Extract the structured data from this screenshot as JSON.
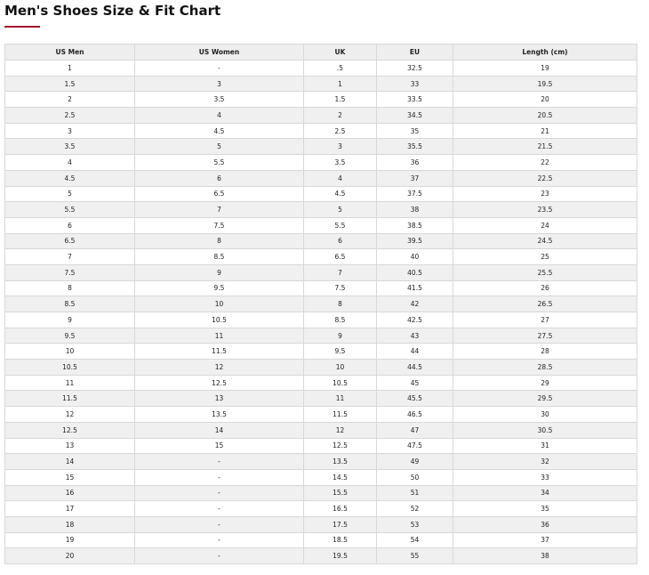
{
  "header": {
    "title": "Men's Shoes Size & Fit Chart"
  },
  "table": {
    "columns": [
      "US Men",
      "US Women",
      "UK",
      "EU",
      "Length (cm)"
    ],
    "rows": [
      [
        "1",
        "-",
        ".5",
        "32.5",
        "19"
      ],
      [
        "1.5",
        "3",
        "1",
        "33",
        "19.5"
      ],
      [
        "2",
        "3.5",
        "1.5",
        "33.5",
        "20"
      ],
      [
        "2.5",
        "4",
        "2",
        "34.5",
        "20.5"
      ],
      [
        "3",
        "4.5",
        "2.5",
        "35",
        "21"
      ],
      [
        "3.5",
        "5",
        "3",
        "35.5",
        "21.5"
      ],
      [
        "4",
        "5.5",
        "3.5",
        "36",
        "22"
      ],
      [
        "4.5",
        "6",
        "4",
        "37",
        "22.5"
      ],
      [
        "5",
        "6.5",
        "4.5",
        "37.5",
        "23"
      ],
      [
        "5.5",
        "7",
        "5",
        "38",
        "23.5"
      ],
      [
        "6",
        "7.5",
        "5.5",
        "38.5",
        "24"
      ],
      [
        "6.5",
        "8",
        "6",
        "39.5",
        "24.5"
      ],
      [
        "7",
        "8.5",
        "6.5",
        "40",
        "25"
      ],
      [
        "7.5",
        "9",
        "7",
        "40.5",
        "25.5"
      ],
      [
        "8",
        "9.5",
        "7.5",
        "41.5",
        "26"
      ],
      [
        "8.5",
        "10",
        "8",
        "42",
        "26.5"
      ],
      [
        "9",
        "10.5",
        "8.5",
        "42.5",
        "27"
      ],
      [
        "9.5",
        "11",
        "9",
        "43",
        "27.5"
      ],
      [
        "10",
        "11.5",
        "9.5",
        "44",
        "28"
      ],
      [
        "10.5",
        "12",
        "10",
        "44.5",
        "28.5"
      ],
      [
        "11",
        "12.5",
        "10.5",
        "45",
        "29"
      ],
      [
        "11.5",
        "13",
        "11",
        "45.5",
        "29.5"
      ],
      [
        "12",
        "13.5",
        "11.5",
        "46.5",
        "30"
      ],
      [
        "12.5",
        "14",
        "12",
        "47",
        "30.5"
      ],
      [
        "13",
        "15",
        "12.5",
        "47.5",
        "31"
      ],
      [
        "14",
        "-",
        "13.5",
        "49",
        "32"
      ],
      [
        "15",
        "-",
        "14.5",
        "50",
        "33"
      ],
      [
        "16",
        "-",
        "15.5",
        "51",
        "34"
      ],
      [
        "17",
        "-",
        "16.5",
        "52",
        "35"
      ],
      [
        "18",
        "-",
        "17.5",
        "53",
        "36"
      ],
      [
        "19",
        "-",
        "18.5",
        "54",
        "37"
      ],
      [
        "20",
        "-",
        "19.5",
        "55",
        "38"
      ]
    ]
  }
}
